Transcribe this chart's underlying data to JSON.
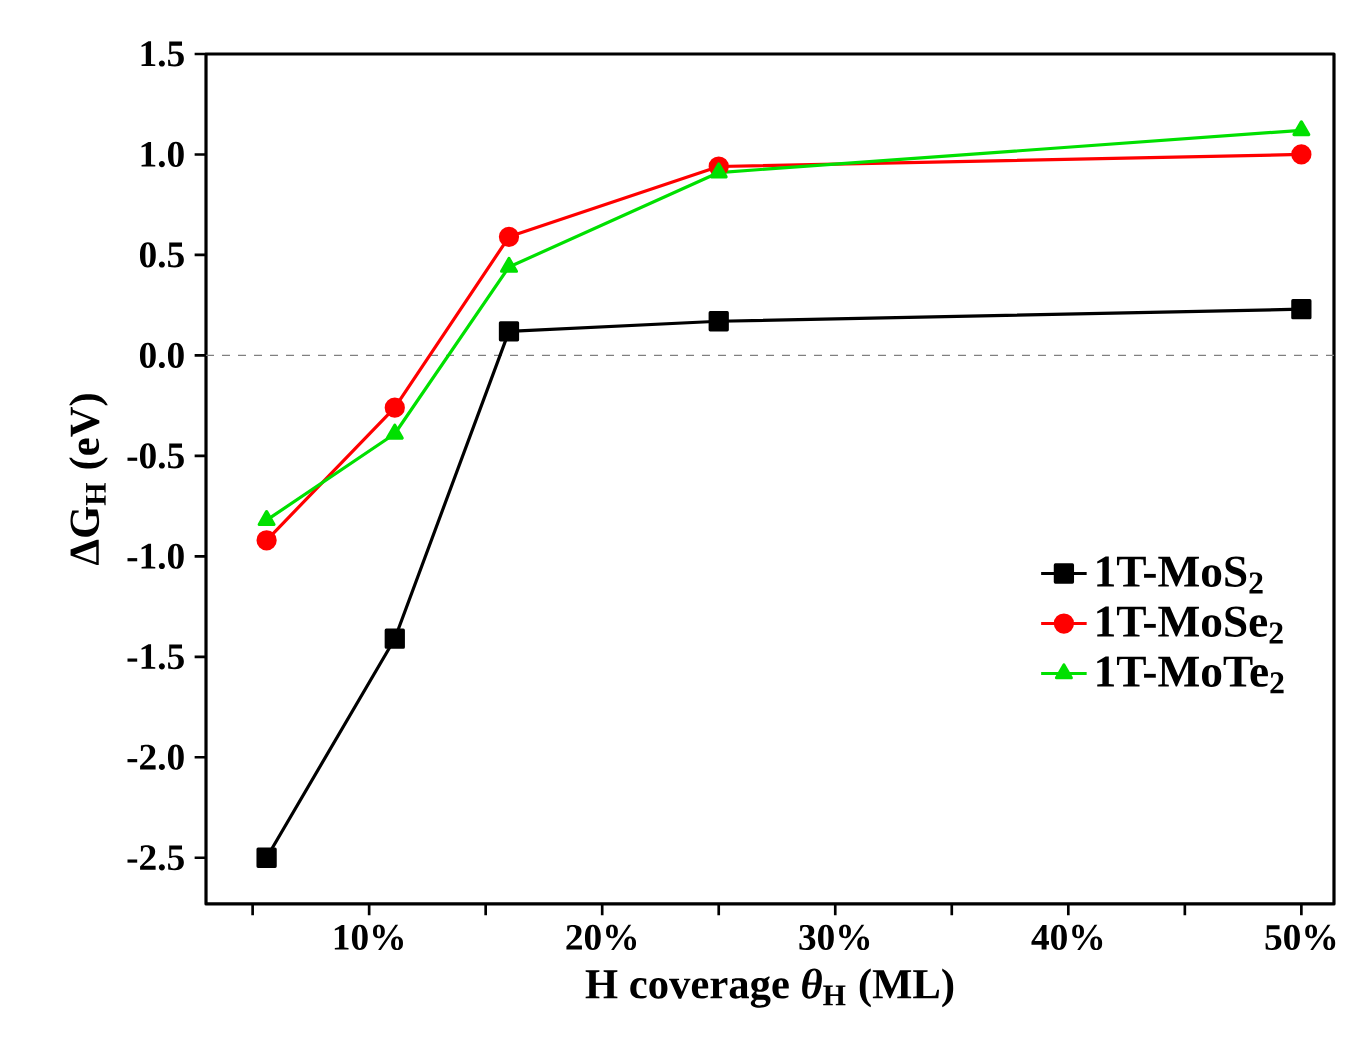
{
  "chart_data": {
    "type": "line",
    "xlabel": "H coverage *θ*$_{H}$ (ML)",
    "ylabel": "ΔG$_{H}$ (eV)",
    "x": [
      5.6,
      11.1,
      16,
      25,
      50
    ],
    "series": [
      {
        "name": "1T-MoS$_{2}$",
        "color": "#000000",
        "marker": "square",
        "values": [
          -2.5,
          -1.41,
          0.12,
          0.17,
          0.23
        ]
      },
      {
        "name": "1T-MoSe$_{2}$",
        "color": "#ff0000",
        "marker": "circle",
        "values": [
          -0.92,
          -0.26,
          0.59,
          0.94,
          1.0
        ]
      },
      {
        "name": "1T-MoTe$_{2}$",
        "color": "#00e000",
        "marker": "triangle",
        "values": [
          -0.82,
          -0.39,
          0.44,
          0.91,
          1.12
        ]
      }
    ],
    "xlim": [
      3,
      51.4
    ],
    "xticks": [
      {
        "value": 5,
        "label": null
      },
      {
        "value": 10,
        "label": "10%"
      },
      {
        "value": 15,
        "label": null
      },
      {
        "value": 20,
        "label": "20%"
      },
      {
        "value": 25,
        "label": null
      },
      {
        "value": 30,
        "label": "30%"
      },
      {
        "value": 35,
        "label": null
      },
      {
        "value": 40,
        "label": "40%"
      },
      {
        "value": 45,
        "label": null
      },
      {
        "value": 50,
        "label": "50%"
      }
    ],
    "ylim": [
      -2.73,
      1.5
    ],
    "yticks": [
      -2.5,
      {
        "value": -2.0,
        "label": "-2.0"
      },
      -1.5,
      {
        "value": -1.0,
        "label": "-1.0"
      },
      -0.5,
      {
        "value": 0,
        "label": "0.0"
      },
      0.5,
      {
        "value": 1.0,
        "label": "1.0"
      },
      1.5
    ],
    "ref_lines": [
      {
        "axis": "y",
        "value": 0,
        "color": "#808080",
        "line_style": "dashed"
      }
    ],
    "legend": "right",
    "line_style": "solid"
  }
}
